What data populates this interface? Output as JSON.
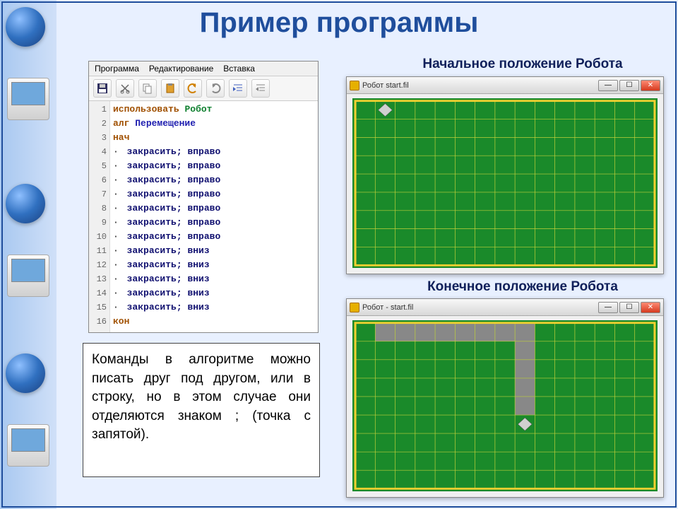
{
  "title": "Пример программы",
  "editor": {
    "menu": [
      "Программа",
      "Редактирование",
      "Вставка"
    ],
    "toolbar_icons": [
      "save",
      "cut",
      "copy",
      "paste",
      "undo",
      "redo",
      "indent",
      "outdent"
    ],
    "lines": [
      {
        "n": 1,
        "html": "<span class='kw-use'>использовать</span> <span class='kw-robot'>Робот</span>"
      },
      {
        "n": 2,
        "html": "<span class='kw-alg'>алг</span> <span class='kw-name'>Перемещение</span>"
      },
      {
        "n": 3,
        "html": "<span class='kw-struct'>нач</span>"
      },
      {
        "n": 4,
        "html": "<span class='dot'>·</span> <span class='cmd'>закрасить; вправо</span>"
      },
      {
        "n": 5,
        "html": "<span class='dot'>·</span> <span class='cmd'>закрасить; вправо</span>"
      },
      {
        "n": 6,
        "html": "<span class='dot'>·</span> <span class='cmd'>закрасить; вправо</span>"
      },
      {
        "n": 7,
        "html": "<span class='dot'>·</span> <span class='cmd'>закрасить; вправо</span>"
      },
      {
        "n": 8,
        "html": "<span class='dot'>·</span> <span class='cmd'>закрасить; вправо</span>"
      },
      {
        "n": 9,
        "html": "<span class='dot'>·</span> <span class='cmd'>закрасить; вправо</span>"
      },
      {
        "n": 10,
        "html": "<span class='dot'>·</span> <span class='cmd'>закрасить; вправо</span>"
      },
      {
        "n": 11,
        "html": "<span class='dot'>·</span> <span class='cmd'>закрасить; вниз</span>"
      },
      {
        "n": 12,
        "html": "<span class='dot'>·</span> <span class='cmd'>закрасить; вниз</span>"
      },
      {
        "n": 13,
        "html": "<span class='dot'>·</span> <span class='cmd'>закрасить; вниз</span>"
      },
      {
        "n": 14,
        "html": "<span class='dot'>·</span> <span class='cmd'>закрасить; вниз</span>"
      },
      {
        "n": 15,
        "html": "<span class='dot'>·</span> <span class='cmd'>закрасить; вниз</span>"
      },
      {
        "n": 16,
        "html": "<span class='kw-struct'>кон</span>"
      }
    ]
  },
  "note_text": "Команды в алгоритме можно писать друг под другом, или в строку, но в этом случае они отделяются знаком ; (точка с запятой).",
  "caption_initial": "Начальное положение Робота",
  "caption_final": "Конечное положение Робота",
  "window1": {
    "title": "Робот  start.fil",
    "grid": {
      "cols": 15,
      "rows": 9,
      "cell": 28,
      "robot": {
        "c": 1,
        "r": 0
      },
      "painted": []
    }
  },
  "window2": {
    "title": "Робот - start.fil",
    "grid": {
      "cols": 15,
      "rows": 9,
      "cell": 28,
      "robot": {
        "c": 8,
        "r": 5
      },
      "painted": [
        {
          "c": 1,
          "r": 0
        },
        {
          "c": 2,
          "r": 0
        },
        {
          "c": 3,
          "r": 0
        },
        {
          "c": 4,
          "r": 0
        },
        {
          "c": 5,
          "r": 0
        },
        {
          "c": 6,
          "r": 0
        },
        {
          "c": 7,
          "r": 0
        },
        {
          "c": 8,
          "r": 0
        },
        {
          "c": 8,
          "r": 1
        },
        {
          "c": 8,
          "r": 2
        },
        {
          "c": 8,
          "r": 3
        },
        {
          "c": 8,
          "r": 4
        }
      ]
    }
  },
  "colors": {
    "grid_bg": "#1a8a2a",
    "grid_line": "#bfcf3a",
    "border": "#f0d030",
    "painted": "#888888",
    "title": "#1f4e9c"
  }
}
